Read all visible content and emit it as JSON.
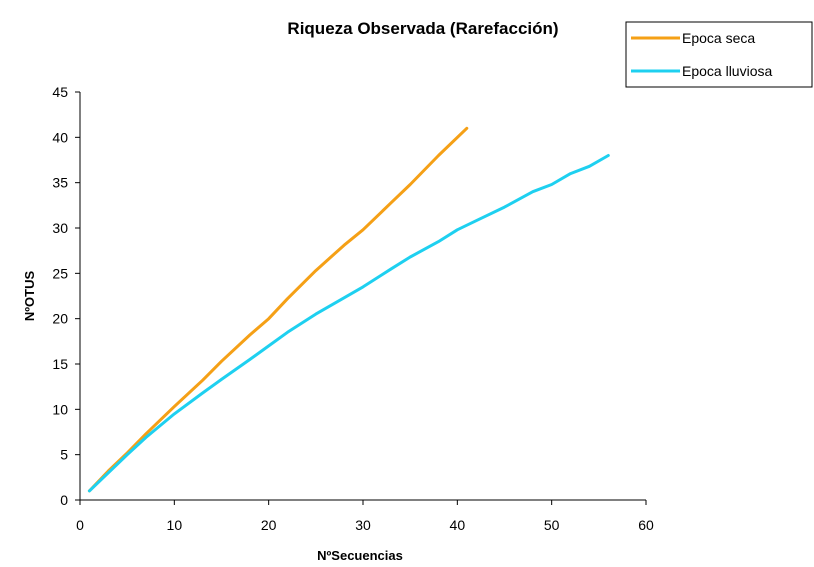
{
  "chart_data": {
    "type": "line",
    "title": "Riqueza Observada (Rarefacción)",
    "xlabel": "NºSecuencias",
    "ylabel": "NºOTUS",
    "xlim": [
      0,
      60
    ],
    "ylim": [
      0,
      45
    ],
    "xticks": [
      0,
      10,
      20,
      30,
      40,
      50,
      60
    ],
    "yticks": [
      0,
      5,
      10,
      15,
      20,
      25,
      30,
      35,
      40,
      45
    ],
    "grid": false,
    "legend_position": "top-right",
    "series": [
      {
        "name": "Epoca seca",
        "color": "#f5a016",
        "points": [
          [
            1,
            1
          ],
          [
            3,
            3.2
          ],
          [
            5,
            5.2
          ],
          [
            7,
            7.3
          ],
          [
            10,
            10.3
          ],
          [
            13,
            13.2
          ],
          [
            15,
            15.3
          ],
          [
            18,
            18.2
          ],
          [
            20,
            20
          ],
          [
            22,
            22.2
          ],
          [
            25,
            25.3
          ],
          [
            28,
            28.1
          ],
          [
            30,
            29.8
          ],
          [
            33,
            32.8
          ],
          [
            35,
            34.8
          ],
          [
            38,
            38
          ],
          [
            41,
            41
          ]
        ]
      },
      {
        "name": "Epoca lluviosa",
        "color": "#1ed0f0",
        "points": [
          [
            1,
            1
          ],
          [
            3,
            3
          ],
          [
            5,
            5
          ],
          [
            7,
            6.9
          ],
          [
            10,
            9.5
          ],
          [
            13,
            11.8
          ],
          [
            15,
            13.3
          ],
          [
            18,
            15.5
          ],
          [
            20,
            17
          ],
          [
            22,
            18.5
          ],
          [
            25,
            20.5
          ],
          [
            28,
            22.3
          ],
          [
            30,
            23.5
          ],
          [
            33,
            25.5
          ],
          [
            35,
            26.8
          ],
          [
            38,
            28.5
          ],
          [
            40,
            29.8
          ],
          [
            42,
            30.8
          ],
          [
            45,
            32.3
          ],
          [
            48,
            34
          ],
          [
            50,
            34.8
          ],
          [
            52,
            36
          ],
          [
            54,
            36.8
          ],
          [
            56,
            38
          ]
        ]
      }
    ]
  }
}
